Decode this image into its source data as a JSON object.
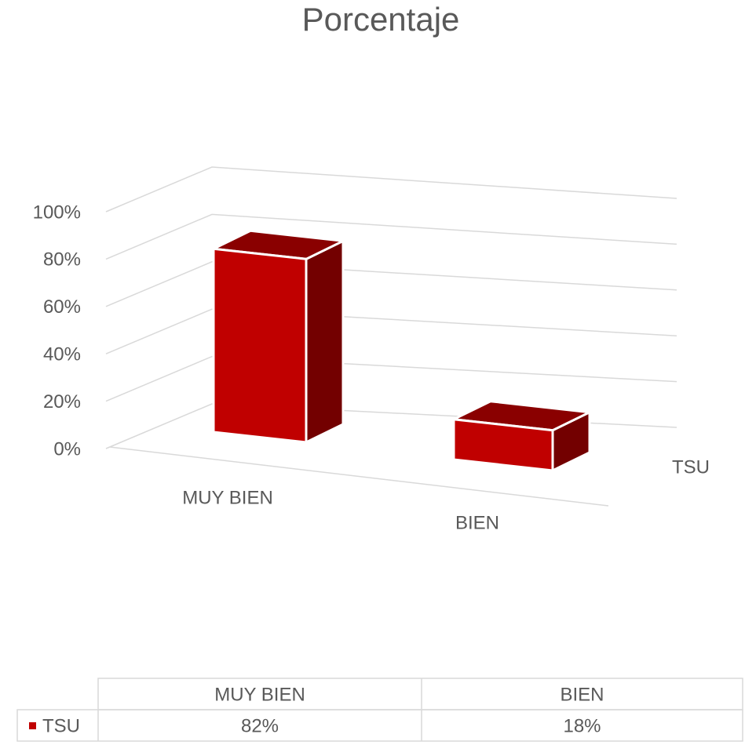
{
  "chart_data": {
    "type": "bar3d",
    "title": "Porcentaje",
    "categories": [
      "MUY BIEN",
      "BIEN"
    ],
    "series": [
      {
        "name": "TSU",
        "color": "#c00000",
        "values": [
          82,
          18
        ],
        "value_labels": [
          "82%",
          "18%"
        ]
      }
    ],
    "ylim": [
      0,
      100
    ],
    "yticks": [
      {
        "value": 0,
        "label": "0%"
      },
      {
        "value": 20,
        "label": "20%"
      },
      {
        "value": 40,
        "label": "40%"
      },
      {
        "value": 60,
        "label": "60%"
      },
      {
        "value": 80,
        "label": "80%"
      },
      {
        "value": 100,
        "label": "100%"
      }
    ],
    "grid": true
  }
}
